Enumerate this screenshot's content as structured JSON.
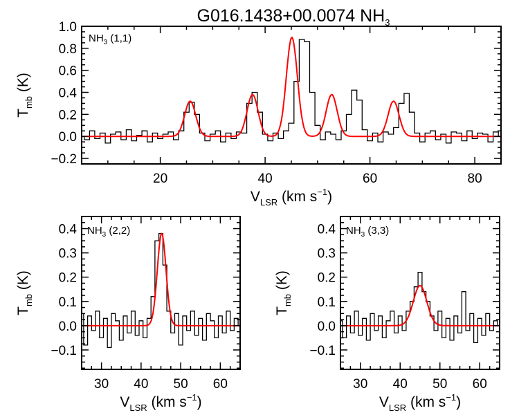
{
  "figure": {
    "title_main": "G016.1438+00.0074 NH",
    "title_sub": "3",
    "colors": {
      "observed": "#000000",
      "fit": "#ff0000",
      "frame": "#000000"
    }
  },
  "chart_data": [
    {
      "type": "line",
      "panel": "top",
      "label_main": "NH",
      "label_sub": "3",
      "label_tail": " (1,1)",
      "xlabel_main": "V",
      "xlabel_sub": "LSR",
      "xlabel_tail": " (km s",
      "xlabel_sup": "−1",
      "xlabel_close": ")",
      "ylabel_main": "T",
      "ylabel_sub": "mb",
      "ylabel_tail": " (K)",
      "xlim": [
        5,
        85
      ],
      "ylim": [
        -0.25,
        1.0
      ],
      "xticks": [
        20,
        40,
        60,
        80
      ],
      "xtick_labels": [
        "20",
        "40",
        "60",
        "80"
      ],
      "yticks": [
        -0.2,
        0.0,
        0.2,
        0.4,
        0.6,
        0.8,
        1.0
      ],
      "ytick_labels": [
        "−0.2",
        "0.0",
        "0.2",
        "0.4",
        "0.6",
        "0.8",
        "1.0"
      ],
      "series": [
        {
          "name": "observed",
          "style": "step",
          "x": [
            5,
            6,
            7,
            8,
            9,
            10,
            11,
            12,
            13,
            14,
            15,
            16,
            17,
            18,
            19,
            20,
            21,
            22,
            23,
            24,
            25,
            26,
            27,
            28,
            29,
            30,
            31,
            32,
            33,
            34,
            35,
            36,
            37,
            38,
            39,
            40,
            41,
            42,
            43,
            44,
            45,
            46,
            47,
            48,
            49,
            50,
            51,
            52,
            53,
            54,
            55,
            56,
            57,
            58,
            59,
            60,
            61,
            62,
            63,
            64,
            65,
            66,
            67,
            68,
            69,
            70,
            71,
            72,
            73,
            74,
            75,
            76,
            77,
            78,
            79,
            80,
            81,
            82,
            83,
            84,
            85
          ],
          "y": [
            0.0,
            -0.03,
            0.05,
            -0.02,
            0.03,
            -0.06,
            0.02,
            0.04,
            -0.03,
            0.06,
            -0.04,
            0.01,
            0.05,
            -0.05,
            0.03,
            -0.02,
            0.02,
            0.04,
            -0.03,
            0.05,
            0.22,
            0.31,
            0.2,
            0.03,
            -0.04,
            0.02,
            0.05,
            -0.05,
            0.03,
            -0.02,
            0.04,
            0.03,
            0.3,
            0.4,
            0.22,
            0.02,
            -0.04,
            0.03,
            -0.02,
            0.05,
            0.12,
            0.5,
            0.88,
            0.86,
            0.4,
            0.1,
            -0.03,
            0.04,
            0.02,
            -0.03,
            0.05,
            0.2,
            0.42,
            0.33,
            0.06,
            -0.04,
            0.03,
            -0.05,
            0.04,
            0.02,
            0.08,
            0.3,
            0.39,
            0.22,
            0.03,
            -0.05,
            0.03,
            0.05,
            -0.03,
            0.02,
            -0.06,
            0.04,
            0.03,
            -0.04,
            0.05,
            -0.02,
            0.03,
            0.02,
            -0.05,
            0.04,
            0.0
          ]
        },
        {
          "name": "fit",
          "style": "gaussians",
          "baseline": 0.0,
          "components": [
            {
              "center": 25.7,
              "amplitude": 0.32,
              "sigma": 1.05
            },
            {
              "center": 37.6,
              "amplitude": 0.38,
              "sigma": 1.05
            },
            {
              "center": 45.1,
              "amplitude": 0.9,
              "sigma": 1.05
            },
            {
              "center": 52.7,
              "amplitude": 0.38,
              "sigma": 1.05
            },
            {
              "center": 64.5,
              "amplitude": 0.32,
              "sigma": 1.05
            }
          ]
        }
      ]
    },
    {
      "type": "line",
      "panel": "bottom-left",
      "label_main": "NH",
      "label_sub": "3",
      "label_tail": " (2,2)",
      "xlabel_main": "V",
      "xlabel_sub": "LSR",
      "xlabel_tail": " (km s",
      "xlabel_sup": "−1",
      "xlabel_close": ")",
      "ylabel_main": "T",
      "ylabel_sub": "mb",
      "ylabel_tail": " (K)",
      "xlim": [
        25,
        65
      ],
      "ylim": [
        -0.18,
        0.45
      ],
      "xticks": [
        30,
        40,
        50,
        60
      ],
      "xtick_labels": [
        "30",
        "40",
        "50",
        "60"
      ],
      "yticks": [
        -0.1,
        0.0,
        0.1,
        0.2,
        0.3,
        0.4
      ],
      "ytick_labels": [
        "−0.1",
        "0.0",
        "0.1",
        "0.2",
        "0.3",
        "0.4"
      ],
      "series": [
        {
          "name": "observed",
          "style": "step",
          "x": [
            25,
            26,
            27,
            28,
            29,
            30,
            31,
            32,
            33,
            34,
            35,
            36,
            37,
            38,
            39,
            40,
            41,
            42,
            43,
            44,
            45,
            46,
            47,
            48,
            49,
            50,
            51,
            52,
            53,
            54,
            55,
            56,
            57,
            58,
            59,
            60,
            61,
            62,
            63,
            64,
            65
          ],
          "y": [
            0.05,
            -0.08,
            0.04,
            -0.02,
            0.06,
            -0.05,
            0.03,
            -0.09,
            0.05,
            0.02,
            -0.06,
            0.04,
            -0.03,
            0.06,
            -0.04,
            0.02,
            -0.05,
            0.03,
            0.12,
            0.35,
            0.38,
            0.25,
            0.06,
            -0.03,
            0.05,
            -0.08,
            0.04,
            -0.02,
            0.06,
            -0.04,
            0.03,
            -0.06,
            0.05,
            0.02,
            -0.05,
            0.04,
            -0.03,
            0.06,
            -0.02,
            0.03,
            0.0
          ]
        },
        {
          "name": "fit",
          "style": "gaussians",
          "baseline": 0.0,
          "components": [
            {
              "center": 45.2,
              "amplitude": 0.38,
              "sigma": 1.1
            }
          ]
        }
      ]
    },
    {
      "type": "line",
      "panel": "bottom-right",
      "label_main": "NH",
      "label_sub": "3",
      "label_tail": " (3,3)",
      "xlabel_main": "V",
      "xlabel_sub": "LSR",
      "xlabel_tail": " (km s",
      "xlabel_sup": "−1",
      "xlabel_close": ")",
      "ylabel_main": "T",
      "ylabel_sub": "mb",
      "ylabel_tail": " (K)",
      "xlim": [
        25,
        65
      ],
      "ylim": [
        -0.18,
        0.45
      ],
      "xticks": [
        30,
        40,
        50,
        60
      ],
      "xtick_labels": [
        "30",
        "40",
        "50",
        "60"
      ],
      "yticks": [
        -0.1,
        0.0,
        0.1,
        0.2,
        0.3,
        0.4
      ],
      "ytick_labels": [
        "−0.1",
        "0.0",
        "0.1",
        "0.2",
        "0.3",
        "0.4"
      ],
      "series": [
        {
          "name": "observed",
          "style": "step",
          "x": [
            25,
            26,
            27,
            28,
            29,
            30,
            31,
            32,
            33,
            34,
            35,
            36,
            37,
            38,
            39,
            40,
            41,
            42,
            43,
            44,
            45,
            46,
            47,
            48,
            49,
            50,
            51,
            52,
            53,
            54,
            55,
            56,
            57,
            58,
            59,
            60,
            61,
            62,
            63,
            64,
            65
          ],
          "y": [
            0.02,
            -0.05,
            0.04,
            -0.03,
            0.06,
            -0.04,
            0.03,
            -0.06,
            0.05,
            -0.02,
            0.04,
            -0.05,
            0.02,
            0.06,
            -0.03,
            0.04,
            -0.02,
            0.06,
            0.1,
            0.16,
            0.22,
            0.14,
            0.1,
            0.04,
            -0.02,
            0.06,
            -0.05,
            0.03,
            -0.06,
            0.04,
            -0.03,
            0.14,
            -0.02,
            0.05,
            -0.07,
            0.03,
            -0.04,
            0.05,
            -0.02,
            0.02,
            0.0
          ]
        },
        {
          "name": "fit",
          "style": "gaussians",
          "baseline": 0.0,
          "components": [
            {
              "center": 45.0,
              "amplitude": 0.165,
              "sigma": 1.7
            }
          ]
        }
      ]
    }
  ]
}
